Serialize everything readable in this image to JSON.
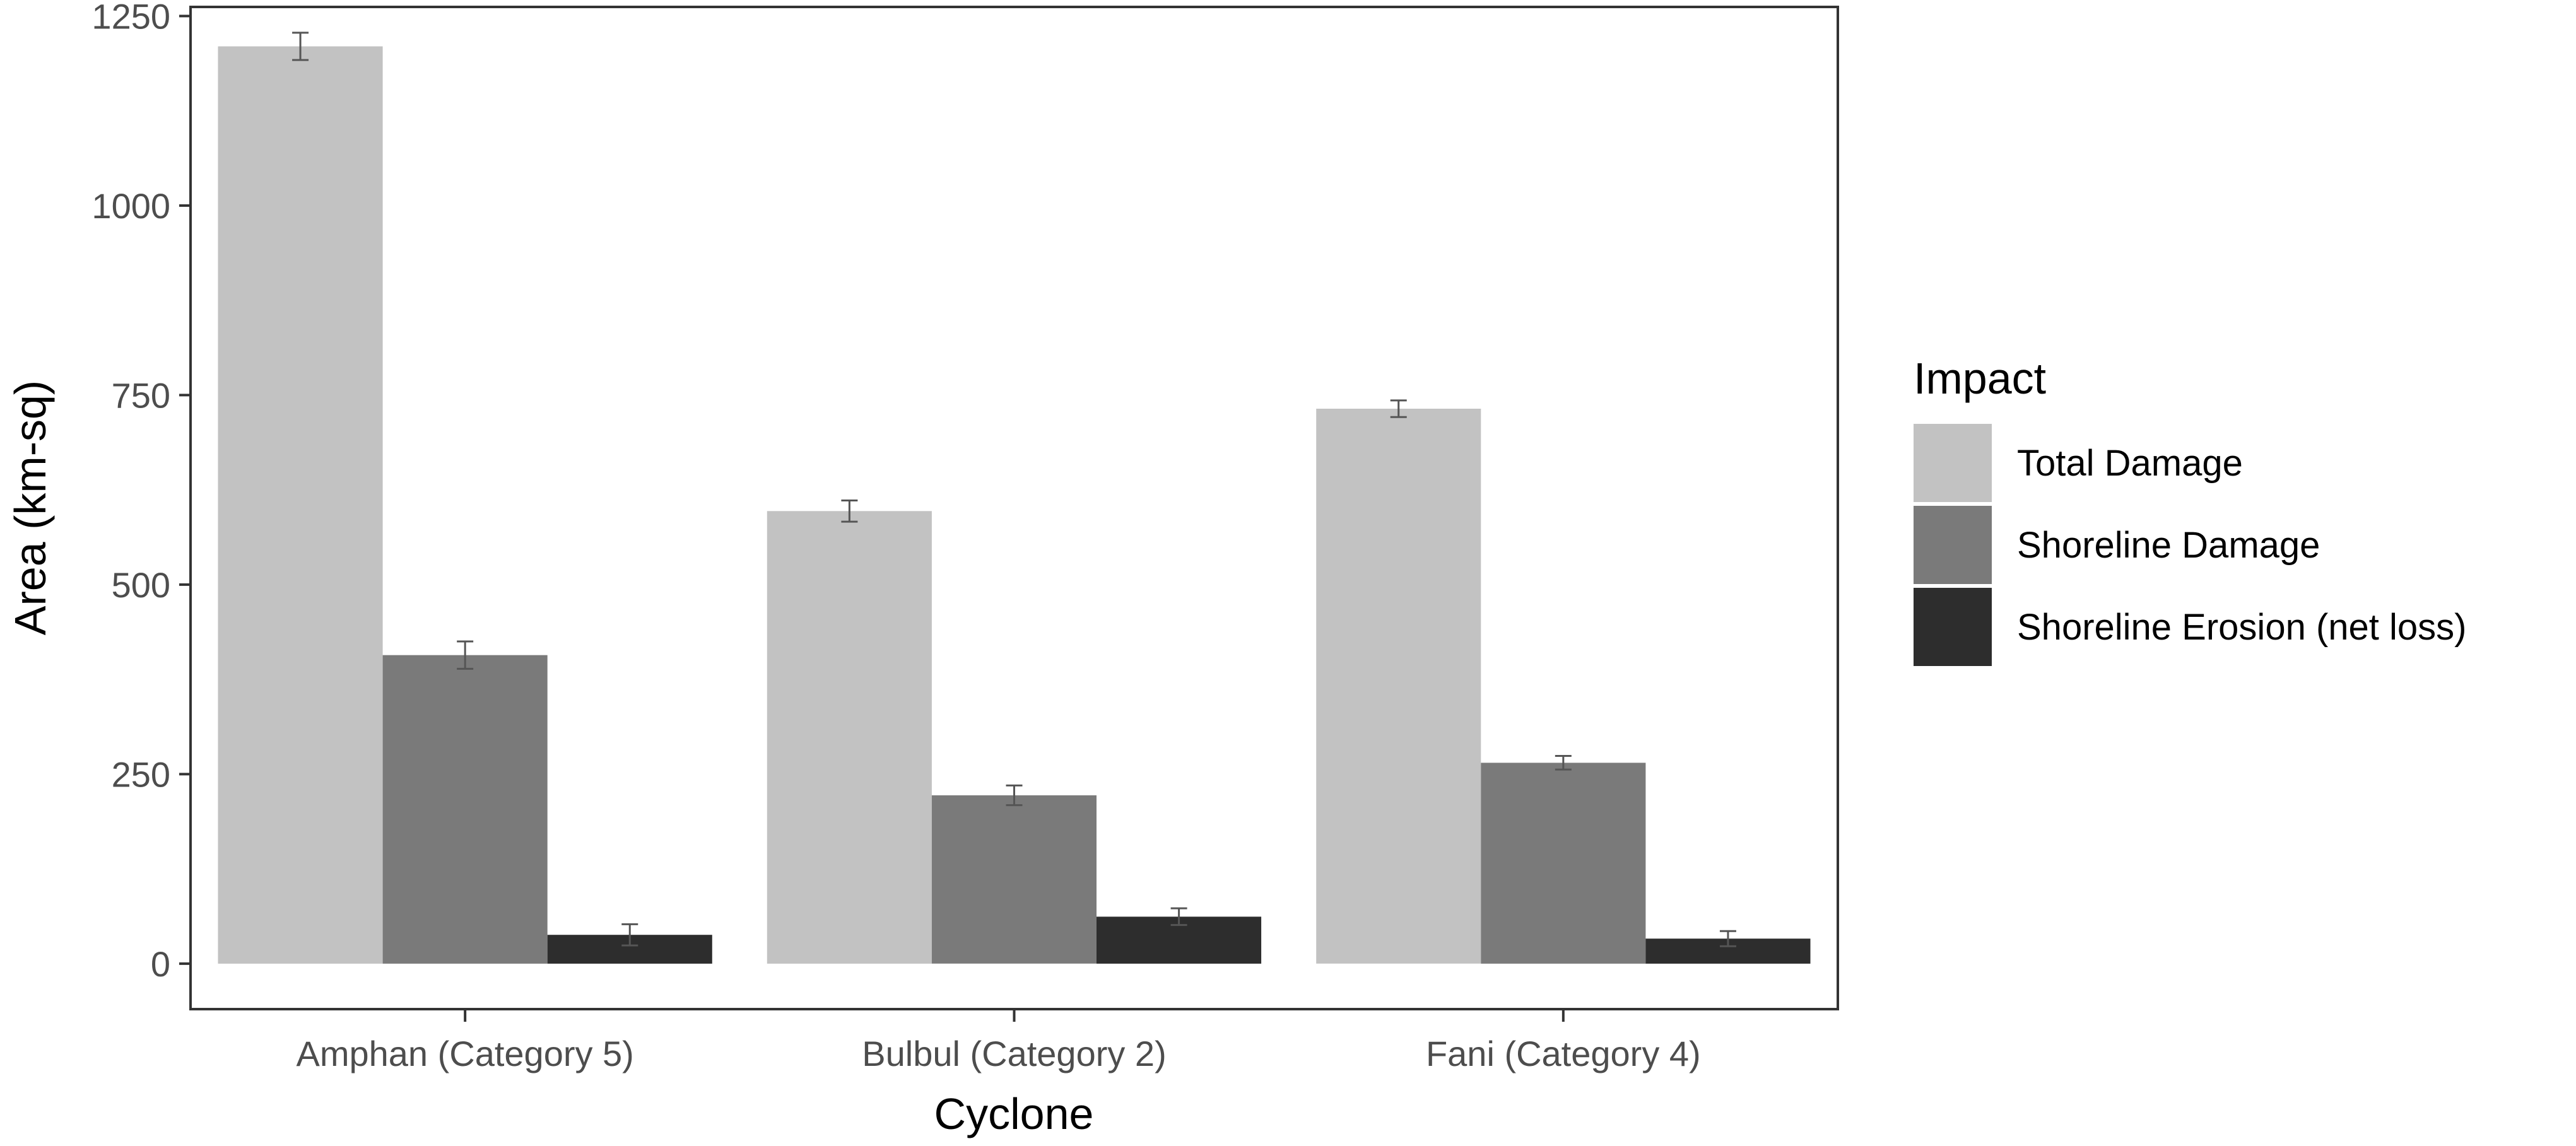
{
  "chart_data": {
    "type": "bar",
    "xlabel": "Cyclone",
    "ylabel": "Area (km-sq)",
    "ylim": [
      -60,
      1262
    ],
    "yticks": [
      0,
      250,
      500,
      750,
      1000,
      1250
    ],
    "grid": false,
    "legend_title": "Impact",
    "legend_placement": "right",
    "categories": [
      "Amphan (Category 5)",
      "Bulbul (Category 2)",
      "Fani (Category 4)"
    ],
    "series": [
      {
        "name": "Total Damage",
        "color": "#c2c2c2",
        "values": [
          1210,
          597,
          732
        ],
        "errors": [
          18,
          14,
          11
        ]
      },
      {
        "name": "Shoreline Damage",
        "color": "#7a7a7a",
        "values": [
          407,
          222,
          265
        ],
        "errors": [
          18,
          13,
          9
        ]
      },
      {
        "name": "Shoreline Erosion (net loss)",
        "color": "#2d2d2d",
        "values": [
          38,
          62,
          33
        ],
        "errors": [
          14,
          11,
          10
        ]
      }
    ]
  }
}
